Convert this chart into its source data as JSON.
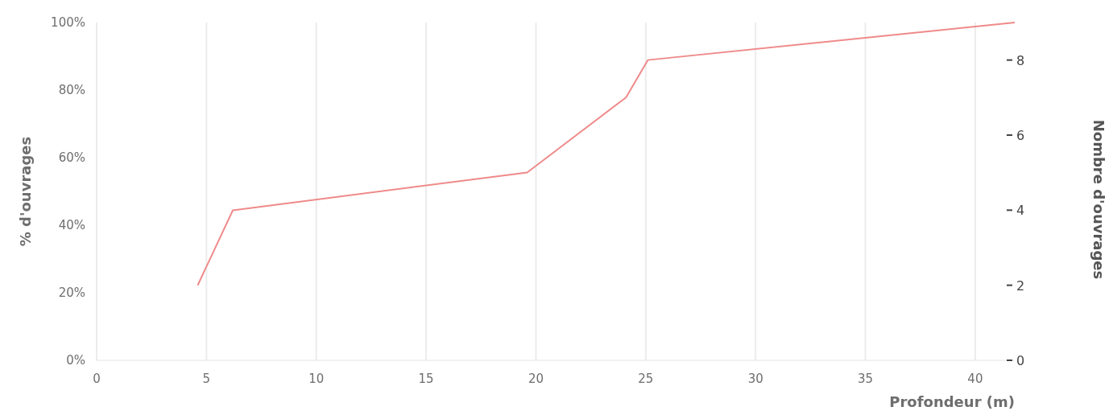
{
  "chart_data": {
    "type": "line",
    "xlabel": "Profondeur (m)",
    "ylabel": "% d'ouvrages",
    "y2label": "Nombre d'ouvrages",
    "x": [
      4.6,
      6.2,
      19.6,
      24.1,
      25.1,
      41.8
    ],
    "series": [
      {
        "color": "#ef8a8a",
        "values": [
          22.2,
          44.4,
          55.6,
          77.8,
          88.9,
          100
        ]
      }
    ],
    "xlim": [
      0,
      41.8
    ],
    "xticks": [
      0,
      5,
      10,
      15,
      20,
      25,
      30,
      35,
      40
    ],
    "ylim": [
      0,
      100
    ],
    "yticks": [
      {
        "value": 0,
        "label": "0%"
      },
      {
        "value": 20,
        "label": "20%"
      },
      {
        "value": 40,
        "label": "40%"
      },
      {
        "value": 60,
        "label": "60%"
      },
      {
        "value": 80,
        "label": "80%"
      },
      {
        "value": 100,
        "label": "100%"
      }
    ],
    "y2lim": [
      0,
      9
    ],
    "y2ticks": [
      0,
      2,
      4,
      6,
      8
    ],
    "grid": "x",
    "marker": "none",
    "line_style": "solid"
  }
}
